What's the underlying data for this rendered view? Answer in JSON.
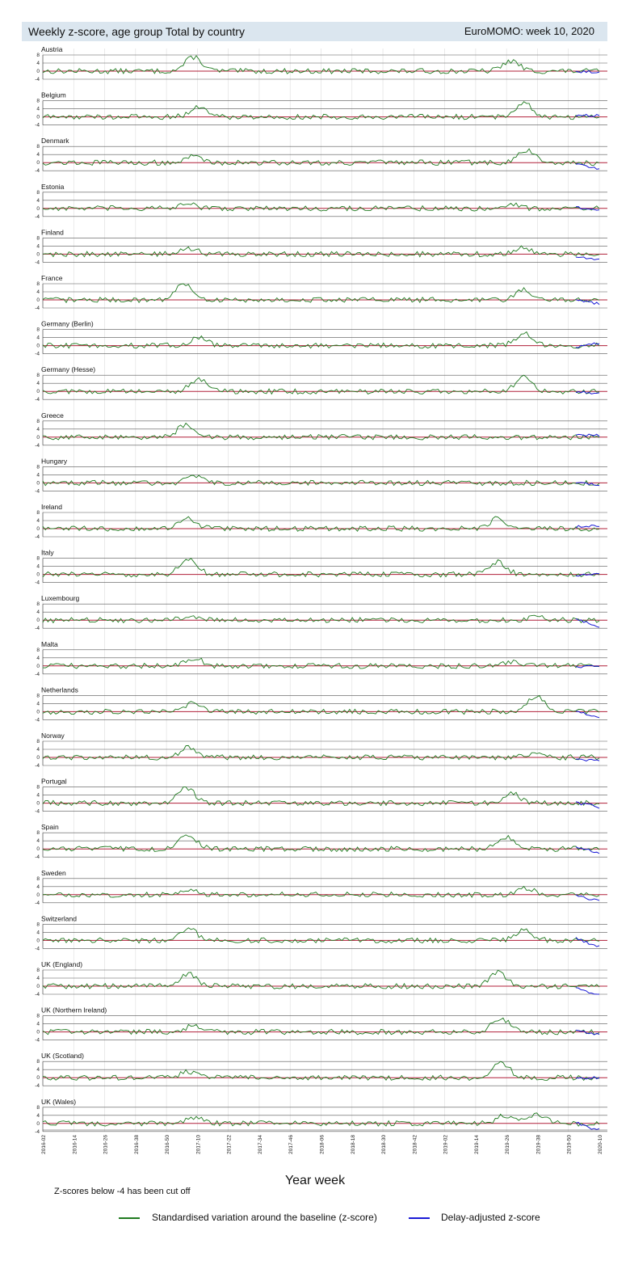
{
  "header": {
    "title": "Weekly z-score, age group Total by country",
    "week": "EuroMOMO: week 10, 2020"
  },
  "colors": {
    "zscore": "#1f7a1f",
    "delay_adjusted": "#1a1ad6",
    "baseline": "#b0203a",
    "gridline": "#555555",
    "vgrid": "#dddddd",
    "header_bg": "#dbe6ef"
  },
  "chart_data": {
    "type": "line",
    "ylim": [
      -4,
      8
    ],
    "yticks": [
      "8",
      "4",
      "0",
      "-4"
    ],
    "xlabel": "Year week",
    "x_ticks": [
      "2016-02",
      "2016-14",
      "2016-26",
      "2016-38",
      "2016-50",
      "2017-10",
      "2017-22",
      "2017-34",
      "2017-46",
      "2018-06",
      "2018-18",
      "2018-30",
      "2018-42",
      "2019-02",
      "2019-14",
      "2019-26",
      "2019-38",
      "2019-50",
      "2020-10"
    ],
    "panels": [
      {
        "country": "Austria",
        "peaks": [
          [
            58,
            7
          ],
          [
            180,
            5
          ]
        ],
        "tail": [
          1,
          -1
        ]
      },
      {
        "country": "Belgium",
        "peaks": [
          [
            60,
            5
          ],
          [
            185,
            7
          ]
        ],
        "tail": [
          0,
          1
        ]
      },
      {
        "country": "Denmark",
        "peaks": [
          [
            58,
            3
          ],
          [
            186,
            6
          ]
        ],
        "tail": [
          -1,
          -3
        ]
      },
      {
        "country": "Estonia",
        "peaks": [
          [
            56,
            2
          ],
          [
            180,
            2
          ]
        ],
        "tail": [
          1,
          -1
        ]
      },
      {
        "country": "Finland",
        "peaks": [
          [
            56,
            3
          ],
          [
            185,
            3
          ]
        ],
        "tail": [
          -1,
          -3
        ]
      },
      {
        "country": "France",
        "peaks": [
          [
            54,
            8
          ],
          [
            185,
            5
          ],
          [
            270,
            4
          ]
        ],
        "tail": [
          0,
          -2
        ]
      },
      {
        "country": "Germany (Berlin)",
        "peaks": [
          [
            60,
            4
          ],
          [
            185,
            6
          ]
        ],
        "tail": [
          1,
          1
        ]
      },
      {
        "country": "Germany (Hesse)",
        "peaks": [
          [
            60,
            6
          ],
          [
            185,
            7
          ]
        ],
        "tail": [
          -1,
          -1
        ]
      },
      {
        "country": "Greece",
        "peaks": [
          [
            55,
            6
          ],
          [
            270,
            3
          ]
        ],
        "tail": [
          1,
          1
        ]
      },
      {
        "country": "Hungary",
        "peaks": [
          [
            58,
            3
          ],
          [
            270,
            3
          ]
        ],
        "tail": [
          1,
          -1
        ]
      },
      {
        "country": "Ireland",
        "peaks": [
          [
            56,
            5
          ],
          [
            175,
            5
          ]
        ],
        "tail": [
          2,
          1
        ]
      },
      {
        "country": "Italy",
        "peaks": [
          [
            56,
            8
          ],
          [
            175,
            6
          ],
          [
            270,
            4
          ]
        ],
        "tail": [
          1,
          0
        ]
      },
      {
        "country": "Luxembourg",
        "peaks": [
          [
            56,
            2
          ],
          [
            190,
            2
          ]
        ],
        "tail": [
          0,
          -3
        ]
      },
      {
        "country": "Malta",
        "peaks": [
          [
            58,
            4
          ],
          [
            180,
            2
          ]
        ],
        "tail": [
          1,
          0
        ]
      },
      {
        "country": "Netherlands",
        "peaks": [
          [
            58,
            5
          ],
          [
            190,
            8
          ]
        ],
        "tail": [
          -1,
          -3
        ]
      },
      {
        "country": "Norway",
        "peaks": [
          [
            56,
            5
          ],
          [
            190,
            3
          ]
        ],
        "tail": [
          0,
          -2
        ]
      },
      {
        "country": "Portugal",
        "peaks": [
          [
            55,
            8
          ],
          [
            180,
            5
          ],
          [
            270,
            5
          ]
        ],
        "tail": [
          1,
          -2
        ]
      },
      {
        "country": "Spain",
        "peaks": [
          [
            56,
            7
          ],
          [
            178,
            6
          ],
          [
            270,
            4
          ]
        ],
        "tail": [
          1,
          -2
        ]
      },
      {
        "country": "Sweden",
        "peaks": [
          [
            56,
            2
          ],
          [
            186,
            3
          ]
        ],
        "tail": [
          -1,
          -3
        ]
      },
      {
        "country": "Switzerland",
        "peaks": [
          [
            56,
            6
          ],
          [
            185,
            5
          ],
          [
            275,
            2
          ]
        ],
        "tail": [
          0,
          -3
        ]
      },
      {
        "country": "UK (England)",
        "peaks": [
          [
            56,
            6
          ],
          [
            175,
            7
          ]
        ],
        "tail": [
          -3,
          -4
        ]
      },
      {
        "country": "UK (Northern Ireland)",
        "peaks": [
          [
            58,
            3
          ],
          [
            176,
            7
          ]
        ],
        "tail": [
          -1,
          -1
        ]
      },
      {
        "country": "UK (Scotland)",
        "peaks": [
          [
            56,
            3
          ],
          [
            176,
            8
          ]
        ],
        "tail": [
          0,
          0
        ]
      },
      {
        "country": "UK (Wales)",
        "peaks": [
          [
            58,
            3
          ],
          [
            178,
            4
          ],
          [
            190,
            4
          ]
        ],
        "tail": [
          -2,
          -3
        ]
      }
    ]
  },
  "footer": {
    "cutoff_note": "Z-scores below -4 has been cut off",
    "legend_zscore": "Standardised variation around the baseline (z-score)",
    "legend_delay": "Delay-adjusted z-score"
  }
}
